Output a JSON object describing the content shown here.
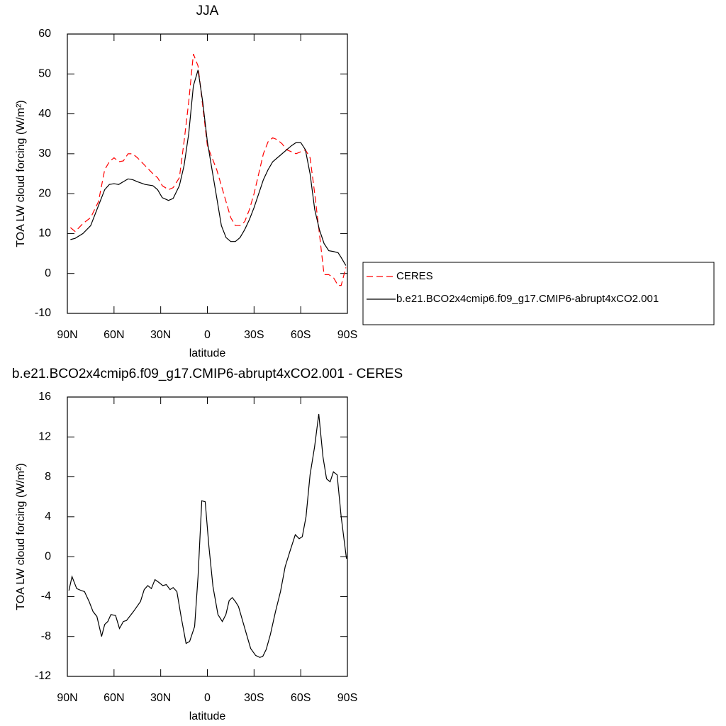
{
  "chart_data": [
    {
      "type": "line",
      "title": "JJA",
      "xlabel": "latitude",
      "ylabel": "TOA LW cloud forcing (W/m²)",
      "xlim": [
        90,
        -90
      ],
      "xticks": [
        {
          "value": 90,
          "label": "90N"
        },
        {
          "value": 60,
          "label": "60N"
        },
        {
          "value": 30,
          "label": "30N"
        },
        0,
        {
          "value": -30,
          "label": "30S"
        },
        {
          "value": -60,
          "label": "60S"
        },
        {
          "value": -90,
          "label": "90S"
        }
      ],
      "ylim": [
        -10,
        60
      ],
      "yticks": [
        60,
        50,
        40,
        30,
        20,
        10,
        0,
        -10
      ],
      "legend": "right",
      "x": [
        88,
        85,
        80,
        75,
        70,
        66,
        63,
        60,
        57,
        54,
        51,
        48,
        45,
        40,
        35,
        32,
        29,
        25,
        22,
        18,
        15,
        12,
        9,
        6,
        3,
        0,
        -3,
        -6,
        -9,
        -12,
        -15,
        -18,
        -21,
        -24,
        -27,
        -30,
        -33,
        -36,
        -39,
        -42,
        -45,
        -48,
        -51,
        -54,
        -57,
        -60,
        -63,
        -66,
        -69,
        -72,
        -75,
        -78,
        -81,
        -84,
        -86,
        -89
      ],
      "series": [
        {
          "name": "CERES",
          "color": "#ff0000",
          "dashed": true,
          "values": [
            11.5,
            10.5,
            12.5,
            14,
            18,
            26,
            28,
            29,
            28,
            28.2,
            30,
            30,
            29,
            27,
            25,
            24,
            22,
            21,
            21.5,
            24,
            33,
            43,
            55,
            52,
            42,
            32,
            29,
            26,
            22,
            18,
            14,
            12,
            12,
            13,
            16,
            20,
            25,
            30,
            33,
            34,
            33.5,
            32.5,
            31,
            30.5,
            30,
            30.5,
            31,
            29,
            20,
            10,
            -0.3,
            -0.3,
            -1,
            -3,
            -3,
            1.5
          ]
        },
        {
          "name": "b.e21.BCO2x4cmip6.f09_g17.CMIP6-abrupt4xCO2.001",
          "color": "#000000",
          "dashed": false,
          "values": [
            8.5,
            8.8,
            10,
            12,
            17,
            21,
            22.3,
            22.5,
            22.3,
            23,
            23.7,
            23.5,
            23,
            22.3,
            22,
            21,
            19,
            18.3,
            18.8,
            22,
            27,
            35,
            47,
            51,
            43,
            33,
            26,
            19,
            12,
            9,
            8,
            8,
            9,
            11,
            13.5,
            16.5,
            20,
            23.5,
            26,
            28,
            29,
            30,
            31,
            32,
            32.8,
            32.8,
            31,
            25,
            16,
            11,
            7.5,
            5.7,
            5.5,
            5.2,
            4,
            2
          ]
        }
      ]
    },
    {
      "type": "line",
      "title": "b.e21.BCO2x4cmip6.f09_g17.CMIP6-abrupt4xCO2.001 - CERES",
      "xlabel": "latitude",
      "ylabel": "TOA LW cloud forcing (W/m²)",
      "xlim": [
        90,
        -90
      ],
      "xticks": [
        {
          "value": 90,
          "label": "90N"
        },
        {
          "value": 60,
          "label": "60N"
        },
        {
          "value": 30,
          "label": "30N"
        },
        0,
        {
          "value": -30,
          "label": "30S"
        },
        {
          "value": -60,
          "label": "60S"
        },
        {
          "value": -90,
          "label": "90S"
        }
      ],
      "ylim": [
        -12,
        16
      ],
      "yticks": [
        16,
        12,
        8,
        4,
        0,
        -4,
        -8,
        -12
      ],
      "x": [
        89,
        87,
        84,
        81,
        79,
        76,
        73.5,
        71,
        68,
        66,
        64,
        62,
        59,
        56.5,
        54,
        52,
        47.5,
        43,
        40.6,
        38.3,
        36,
        33.7,
        31,
        28.7,
        26.4,
        24,
        22,
        19.6,
        16.9,
        13.7,
        11.4,
        8.2,
        6,
        3.6,
        1.4,
        -1,
        -3.6,
        -6.8,
        -9.6,
        -11.9,
        -14,
        -16,
        -18,
        -20,
        -23.7,
        -27.8,
        -31,
        -33.7,
        -35.6,
        -37.8,
        -40.5,
        -43.8,
        -47,
        -50,
        -53,
        -56.5,
        -59,
        -61,
        -63.4,
        -66,
        -68.9,
        -71.6,
        -74.3,
        -76.6,
        -78.9,
        -81,
        -83.4,
        -86,
        -89.4
      ],
      "series": [
        {
          "color": "#000000",
          "dashed": false,
          "values": [
            -3.4,
            -2,
            -3.2,
            -3.4,
            -3.5,
            -4.5,
            -5.5,
            -6,
            -8,
            -6.8,
            -6.5,
            -5.8,
            -5.9,
            -7.2,
            -6.5,
            -6.4,
            -5.5,
            -4.5,
            -3.3,
            -2.9,
            -3.2,
            -2.3,
            -2.6,
            -2.9,
            -2.8,
            -3.3,
            -3.1,
            -3.5,
            -6,
            -8.7,
            -8.5,
            -7,
            -2,
            5.6,
            5.5,
            1,
            -3,
            -5.8,
            -6.5,
            -5.8,
            -4.4,
            -4.1,
            -4.5,
            -5,
            -7,
            -9.2,
            -9.9,
            -10.1,
            -10,
            -9.3,
            -7.8,
            -5.5,
            -3.5,
            -1,
            0.5,
            2.2,
            1.8,
            2,
            4,
            8.2,
            11,
            14.3,
            10,
            7.8,
            7.5,
            8.5,
            8.2,
            4,
            -0.2
          ]
        }
      ]
    }
  ]
}
